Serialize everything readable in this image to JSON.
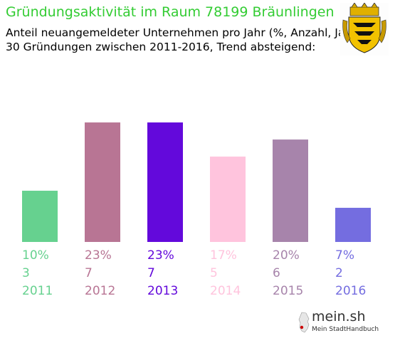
{
  "header": {
    "title": "Gründungsaktivität im Raum 78199 Bräunlingen",
    "subtitle_line1": "Anteil neuangemeldeter Unternehmen pro Jahr (%, Anzahl, Jahr)",
    "subtitle_line2": "30 Gründungen zwischen 2011-2016, Trend absteigend:"
  },
  "crest": {
    "icon": "baden-wuerttemberg-coat-of-arms-icon"
  },
  "chart_data": {
    "type": "bar",
    "categories": [
      "2011",
      "2012",
      "2013",
      "2014",
      "2015",
      "2016"
    ],
    "values": [
      3,
      7,
      7,
      5,
      6,
      2
    ],
    "percent_labels": [
      "10%",
      "23%",
      "23%",
      "17%",
      "20%",
      "7%"
    ],
    "colors": [
      "#66d18f",
      "#b87594",
      "#6309db",
      "#ffc4dd",
      "#a784ab",
      "#746de0"
    ],
    "title": "",
    "xlabel": "",
    "ylabel": "",
    "ylim": [
      0,
      7.67
    ],
    "grid": false
  },
  "brand": {
    "name": "mein.sh",
    "tagline": "Mein StadtHandbuch",
    "icon": "germany-map-icon"
  }
}
